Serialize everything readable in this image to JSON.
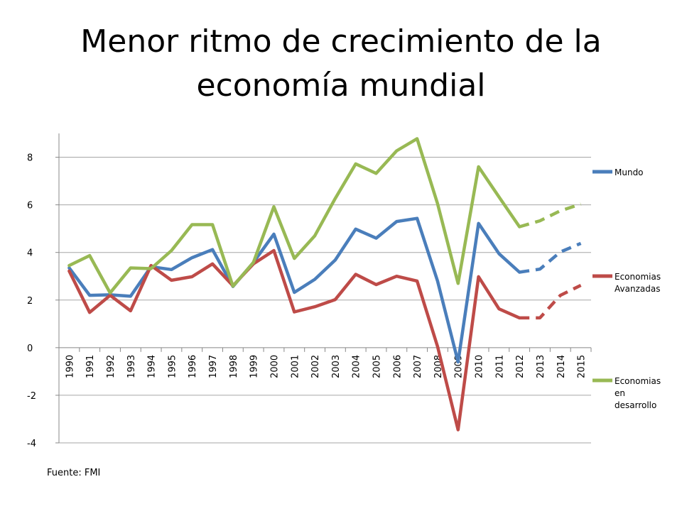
{
  "slide": {
    "title": "Menor ritmo de crecimiento de la economía mundial",
    "source": "Fuente: FMI"
  },
  "colors": {
    "mundo": "#4A7EBB",
    "avanzadas": "#BE4B48",
    "desarrollo": "#98B954",
    "axis": "#888888"
  },
  "chart_data": {
    "type": "line",
    "title": "",
    "xlabel": "",
    "ylabel": "",
    "ylim": [
      -4,
      9
    ],
    "yticks": [
      -4,
      -2,
      0,
      2,
      4,
      6,
      8
    ],
    "grid": true,
    "legend_position": "right",
    "categories": [
      "1990",
      "1991",
      "1992",
      "1993",
      "1994",
      "1995",
      "1996",
      "1997",
      "1998",
      "1999",
      "2000",
      "2001",
      "2002",
      "2003",
      "2004",
      "2005",
      "2006",
      "2007",
      "2008",
      "2009",
      "2010",
      "2011",
      "2012",
      "2013",
      "2014",
      "2015"
    ],
    "projection_start": "2012",
    "series": [
      {
        "name": "Mundo",
        "color": "#4A7EBB",
        "values": [
          3.35,
          2.2,
          2.22,
          2.16,
          3.4,
          3.28,
          3.78,
          4.12,
          2.57,
          3.58,
          4.77,
          2.32,
          2.87,
          3.68,
          4.98,
          4.6,
          5.3,
          5.43,
          2.8,
          -0.6,
          5.22,
          3.95,
          3.17,
          3.3,
          4.02,
          4.38
        ]
      },
      {
        "name": "Economias Avanzadas",
        "color": "#BE4B48",
        "values": [
          3.22,
          1.48,
          2.2,
          1.55,
          3.45,
          2.83,
          2.98,
          3.52,
          2.6,
          3.52,
          4.08,
          1.5,
          1.72,
          2.02,
          3.08,
          2.65,
          3.0,
          2.8,
          0.05,
          -3.45,
          2.98,
          1.63,
          1.25,
          1.25,
          2.2,
          2.62
        ]
      },
      {
        "name": "Economias en desarrollo",
        "color": "#98B954",
        "values": [
          3.45,
          3.87,
          2.3,
          3.35,
          3.32,
          4.08,
          5.17,
          5.17,
          2.58,
          3.58,
          5.92,
          3.75,
          4.7,
          6.27,
          7.72,
          7.32,
          8.27,
          8.78,
          6.05,
          2.7,
          7.6,
          6.33,
          5.08,
          5.33,
          5.75,
          6.03
        ]
      }
    ]
  }
}
